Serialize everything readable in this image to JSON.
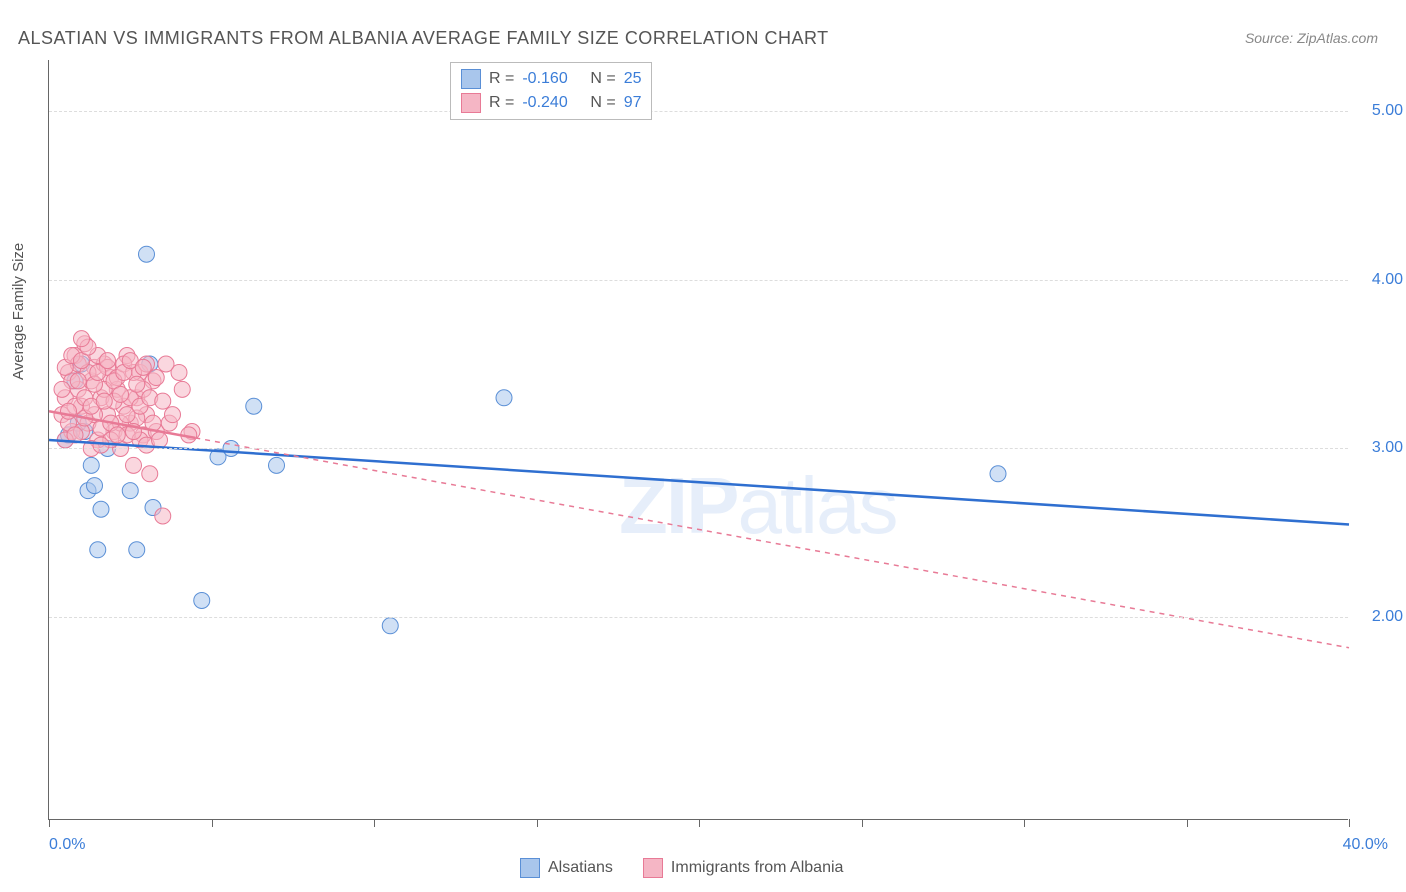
{
  "title": "ALSATIAN VS IMMIGRANTS FROM ALBANIA AVERAGE FAMILY SIZE CORRELATION CHART",
  "source": "Source: ZipAtlas.com",
  "ylabel": "Average Family Size",
  "watermark_bold": "ZIP",
  "watermark_light": "atlas",
  "chart": {
    "type": "scatter-with-trend",
    "background_color": "#ffffff",
    "grid_color": "#dddddd",
    "axis_color": "#666666",
    "xlim": [
      0,
      40
    ],
    "ylim": [
      0.8,
      5.3
    ],
    "x_ticks_pct": [
      0,
      5,
      10,
      15,
      20,
      25,
      30,
      35,
      40
    ],
    "x_label_min": "0.0%",
    "x_label_max": "40.0%",
    "y_gridlines": [
      {
        "value": 2.0,
        "label": "2.00"
      },
      {
        "value": 3.0,
        "label": "3.00"
      },
      {
        "value": 4.0,
        "label": "4.00"
      },
      {
        "value": 5.0,
        "label": "5.00"
      }
    ],
    "marker_radius": 8,
    "marker_opacity": 0.55,
    "marker_stroke_width": 1,
    "trend_line_width": 2.5,
    "series": [
      {
        "name": "Alsatians",
        "color_fill": "#a9c6ec",
        "color_stroke": "#5a8fd6",
        "trend_color": "#2f6fd0",
        "trend_dash": "none",
        "R": "-0.160",
        "N": "25",
        "trend": {
          "x1": 0,
          "y1": 3.05,
          "x2": 40,
          "y2": 2.55
        },
        "points": [
          {
            "x": 0.5,
            "y": 3.05
          },
          {
            "x": 0.6,
            "y": 3.08
          },
          {
            "x": 1.0,
            "y": 3.5
          },
          {
            "x": 1.2,
            "y": 2.75
          },
          {
            "x": 1.4,
            "y": 2.78
          },
          {
            "x": 1.1,
            "y": 3.1
          },
          {
            "x": 1.5,
            "y": 2.4
          },
          {
            "x": 1.6,
            "y": 2.64
          },
          {
            "x": 1.8,
            "y": 3.0
          },
          {
            "x": 2.5,
            "y": 2.75
          },
          {
            "x": 2.7,
            "y": 2.4
          },
          {
            "x": 3.0,
            "y": 4.15
          },
          {
            "x": 3.1,
            "y": 3.5
          },
          {
            "x": 3.2,
            "y": 2.65
          },
          {
            "x": 4.7,
            "y": 2.1
          },
          {
            "x": 5.2,
            "y": 2.95
          },
          {
            "x": 5.6,
            "y": 3.0
          },
          {
            "x": 6.3,
            "y": 3.25
          },
          {
            "x": 7.0,
            "y": 2.9
          },
          {
            "x": 10.5,
            "y": 1.95
          },
          {
            "x": 14.0,
            "y": 3.3
          },
          {
            "x": 29.2,
            "y": 2.85
          },
          {
            "x": 0.8,
            "y": 3.4
          },
          {
            "x": 0.9,
            "y": 3.15
          },
          {
            "x": 1.3,
            "y": 2.9
          }
        ]
      },
      {
        "name": "Immigrants from Albania",
        "color_fill": "#f5b6c5",
        "color_stroke": "#e87a96",
        "trend_color": "#e87a96",
        "trend_dash": "5,5",
        "R": "-0.240",
        "N": "97",
        "trend": {
          "x1": 0,
          "y1": 3.22,
          "x2": 40,
          "y2": 1.82
        },
        "trend_solid_until_x": 4.5,
        "points": [
          {
            "x": 0.4,
            "y": 3.2
          },
          {
            "x": 0.5,
            "y": 3.3
          },
          {
            "x": 0.6,
            "y": 3.45
          },
          {
            "x": 0.7,
            "y": 3.1
          },
          {
            "x": 0.8,
            "y": 3.55
          },
          {
            "x": 0.9,
            "y": 3.35
          },
          {
            "x": 1.0,
            "y": 3.25
          },
          {
            "x": 1.1,
            "y": 3.62
          },
          {
            "x": 1.2,
            "y": 3.15
          },
          {
            "x": 1.3,
            "y": 3.4
          },
          {
            "x": 1.4,
            "y": 3.48
          },
          {
            "x": 1.5,
            "y": 3.05
          },
          {
            "x": 1.6,
            "y": 3.3
          },
          {
            "x": 1.7,
            "y": 3.5
          },
          {
            "x": 1.8,
            "y": 3.2
          },
          {
            "x": 1.9,
            "y": 3.42
          },
          {
            "x": 2.0,
            "y": 3.1
          },
          {
            "x": 2.1,
            "y": 3.35
          },
          {
            "x": 2.2,
            "y": 3.0
          },
          {
            "x": 2.3,
            "y": 3.25
          },
          {
            "x": 2.4,
            "y": 3.55
          },
          {
            "x": 2.5,
            "y": 3.15
          },
          {
            "x": 2.6,
            "y": 2.9
          },
          {
            "x": 2.7,
            "y": 3.3
          },
          {
            "x": 2.8,
            "y": 3.45
          },
          {
            "x": 2.9,
            "y": 3.08
          },
          {
            "x": 3.0,
            "y": 3.2
          },
          {
            "x": 3.1,
            "y": 2.85
          },
          {
            "x": 3.2,
            "y": 3.4
          },
          {
            "x": 3.3,
            "y": 3.1
          },
          {
            "x": 3.5,
            "y": 2.6
          },
          {
            "x": 3.7,
            "y": 3.15
          },
          {
            "x": 4.0,
            "y": 3.45
          },
          {
            "x": 4.4,
            "y": 3.1
          },
          {
            "x": 0.5,
            "y": 3.05
          },
          {
            "x": 0.6,
            "y": 3.15
          },
          {
            "x": 0.7,
            "y": 3.4
          },
          {
            "x": 0.8,
            "y": 3.25
          },
          {
            "x": 0.9,
            "y": 3.5
          },
          {
            "x": 1.0,
            "y": 3.1
          },
          {
            "x": 1.1,
            "y": 3.3
          },
          {
            "x": 1.2,
            "y": 3.45
          },
          {
            "x": 1.3,
            "y": 3.0
          },
          {
            "x": 1.4,
            "y": 3.2
          },
          {
            "x": 1.5,
            "y": 3.55
          },
          {
            "x": 1.6,
            "y": 3.12
          },
          {
            "x": 1.7,
            "y": 3.35
          },
          {
            "x": 1.8,
            "y": 3.48
          },
          {
            "x": 1.9,
            "y": 3.05
          },
          {
            "x": 2.0,
            "y": 3.28
          },
          {
            "x": 2.1,
            "y": 3.42
          },
          {
            "x": 2.2,
            "y": 3.15
          },
          {
            "x": 2.3,
            "y": 3.5
          },
          {
            "x": 2.4,
            "y": 3.08
          },
          {
            "x": 2.5,
            "y": 3.3
          },
          {
            "x": 2.6,
            "y": 3.45
          },
          {
            "x": 2.7,
            "y": 3.18
          },
          {
            "x": 2.8,
            "y": 3.05
          },
          {
            "x": 2.9,
            "y": 3.35
          },
          {
            "x": 3.0,
            "y": 3.5
          },
          {
            "x": 0.4,
            "y": 3.35
          },
          {
            "x": 0.5,
            "y": 3.48
          },
          {
            "x": 0.6,
            "y": 3.22
          },
          {
            "x": 0.7,
            "y": 3.55
          },
          {
            "x": 0.8,
            "y": 3.08
          },
          {
            "x": 0.9,
            "y": 3.4
          },
          {
            "x": 1.0,
            "y": 3.52
          },
          {
            "x": 1.1,
            "y": 3.18
          },
          {
            "x": 1.2,
            "y": 3.6
          },
          {
            "x": 1.3,
            "y": 3.25
          },
          {
            "x": 1.4,
            "y": 3.38
          },
          {
            "x": 1.5,
            "y": 3.45
          },
          {
            "x": 1.6,
            "y": 3.02
          },
          {
            "x": 1.7,
            "y": 3.28
          },
          {
            "x": 1.8,
            "y": 3.52
          },
          {
            "x": 1.9,
            "y": 3.15
          },
          {
            "x": 2.0,
            "y": 3.4
          },
          {
            "x": 2.1,
            "y": 3.08
          },
          {
            "x": 2.2,
            "y": 3.32
          },
          {
            "x": 2.3,
            "y": 3.45
          },
          {
            "x": 2.4,
            "y": 3.2
          },
          {
            "x": 2.5,
            "y": 3.52
          },
          {
            "x": 2.6,
            "y": 3.1
          },
          {
            "x": 2.7,
            "y": 3.38
          },
          {
            "x": 2.8,
            "y": 3.25
          },
          {
            "x": 2.9,
            "y": 3.48
          },
          {
            "x": 3.0,
            "y": 3.02
          },
          {
            "x": 3.1,
            "y": 3.3
          },
          {
            "x": 3.2,
            "y": 3.15
          },
          {
            "x": 3.3,
            "y": 3.42
          },
          {
            "x": 3.4,
            "y": 3.05
          },
          {
            "x": 3.5,
            "y": 3.28
          },
          {
            "x": 3.6,
            "y": 3.5
          },
          {
            "x": 3.8,
            "y": 3.2
          },
          {
            "x": 4.1,
            "y": 3.35
          },
          {
            "x": 4.3,
            "y": 3.08
          },
          {
            "x": 1.0,
            "y": 3.65
          }
        ]
      }
    ]
  },
  "legend_top": {
    "R_label": "R =",
    "N_label": "N ="
  },
  "legend_bottom": [
    {
      "label": "Alsatians",
      "fill": "#a9c6ec",
      "stroke": "#5a8fd6"
    },
    {
      "label": "Immigrants from Albania",
      "fill": "#f5b6c5",
      "stroke": "#e87a96"
    }
  ]
}
